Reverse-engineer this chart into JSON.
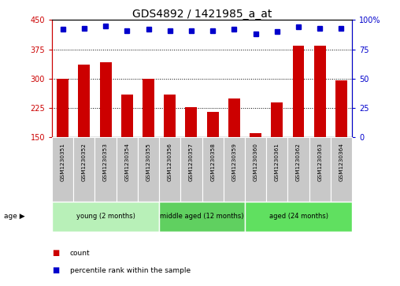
{
  "title": "GDS4892 / 1421985_a_at",
  "samples": [
    "GSM1230351",
    "GSM1230352",
    "GSM1230353",
    "GSM1230354",
    "GSM1230355",
    "GSM1230356",
    "GSM1230357",
    "GSM1230358",
    "GSM1230359",
    "GSM1230360",
    "GSM1230361",
    "GSM1230362",
    "GSM1230363",
    "GSM1230364"
  ],
  "counts": [
    300,
    335,
    342,
    260,
    300,
    260,
    228,
    215,
    250,
    160,
    240,
    385,
    385,
    295
  ],
  "percentile_ranks": [
    92,
    93,
    95,
    91,
    92,
    91,
    91,
    91,
    92,
    88,
    90,
    94,
    93,
    93
  ],
  "ylim_left": [
    150,
    450
  ],
  "ylim_right": [
    0,
    100
  ],
  "yticks_left": [
    150,
    225,
    300,
    375,
    450
  ],
  "yticks_right": [
    0,
    25,
    50,
    75,
    100
  ],
  "bar_color": "#cc0000",
  "dot_color": "#0000cc",
  "groups": [
    {
      "label": "young (2 months)",
      "start": 0,
      "end": 4,
      "color": "#b8f0b8"
    },
    {
      "label": "middle aged (12 months)",
      "start": 5,
      "end": 8,
      "color": "#60d060"
    },
    {
      "label": "aged (24 months)",
      "start": 9,
      "end": 13,
      "color": "#60e060"
    }
  ],
  "title_fontsize": 10,
  "tick_fontsize": 7,
  "bar_width": 0.55,
  "sample_box_color": "#c8c8c8",
  "legend_square_size": 7
}
